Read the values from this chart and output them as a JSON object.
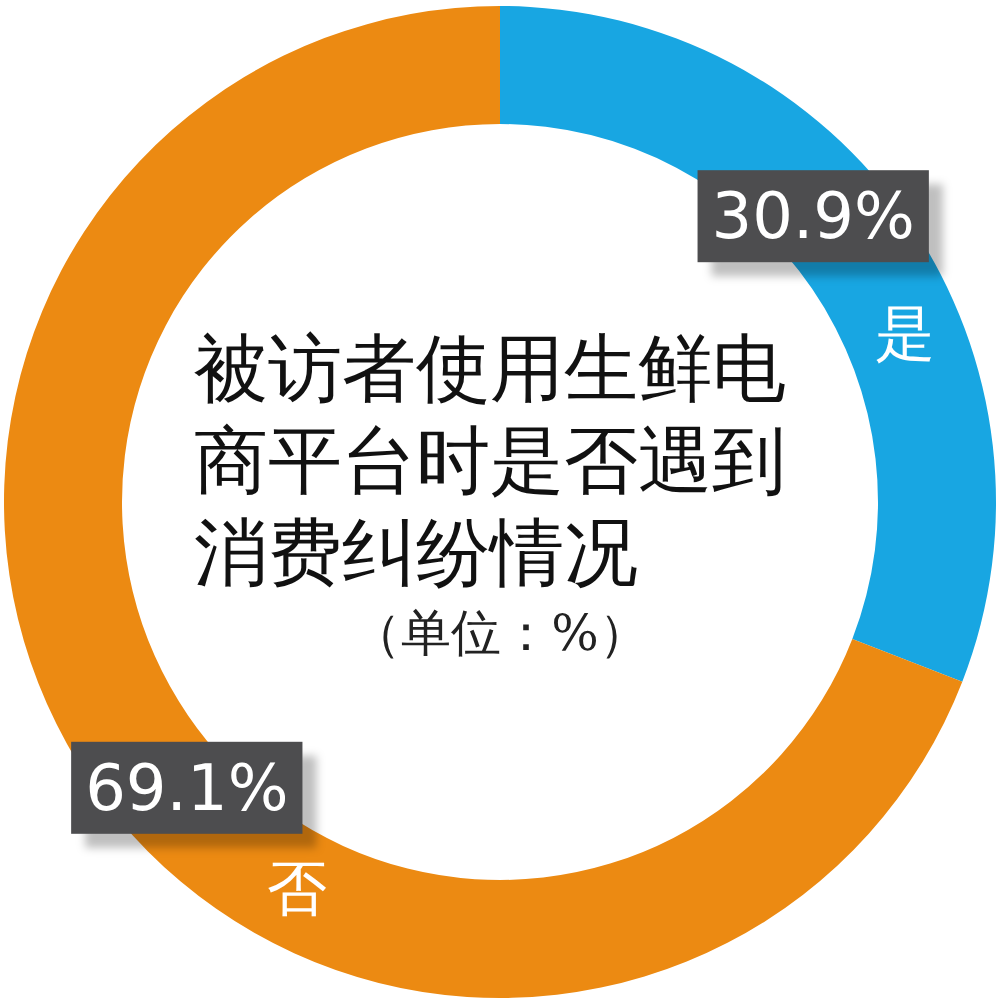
{
  "chart_data": {
    "type": "donut",
    "title": "被访者使用生鲜电商平台时是否遇到消费纠纷情况",
    "subtitle": "（单位：%）",
    "categories": [
      "是",
      "否"
    ],
    "values": [
      30.9,
      69.1
    ],
    "colors": [
      "#18a6e2",
      "#ec8a12"
    ],
    "value_labels": [
      "30.9%",
      "69.1%"
    ],
    "legend": false
  }
}
